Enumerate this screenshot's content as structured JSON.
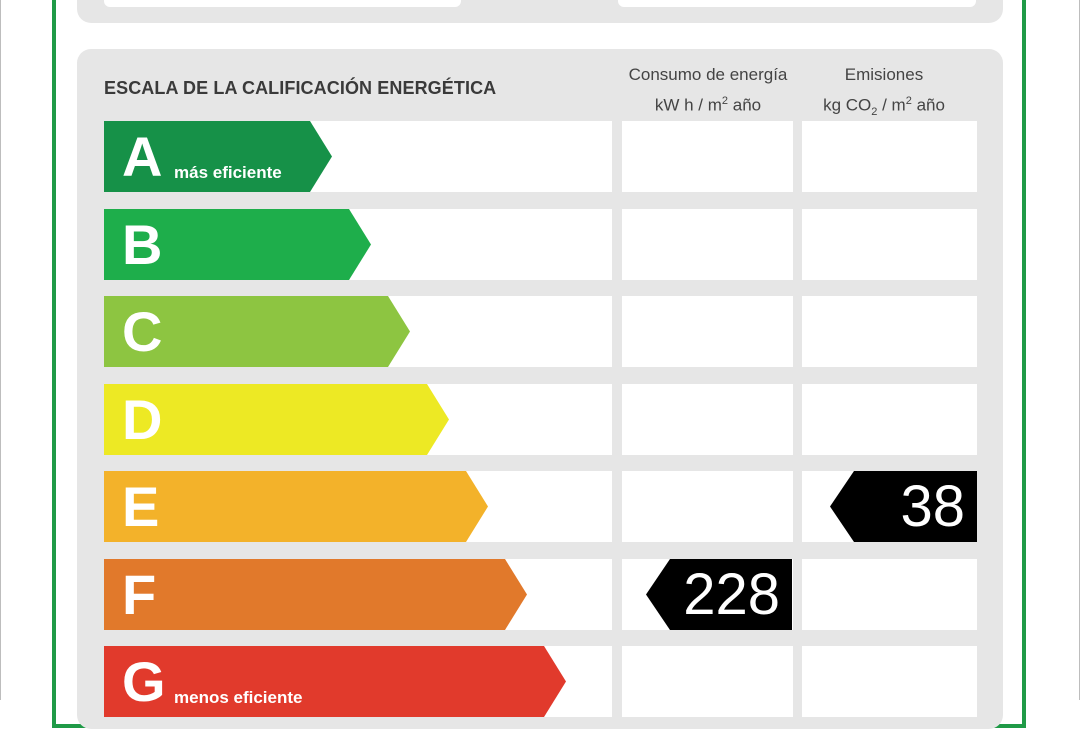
{
  "header": {
    "title": "ESCALA DE LA CALIFICACIÓN ENERGÉTICA",
    "energy_col_line1": "Consumo de energía",
    "energy_col_line2_a": "kW h  / m",
    "energy_col_line2_sup": "2",
    "energy_col_line2_b": " año",
    "emissions_col_line1": "Emisiones",
    "emissions_col_line2_a": "kg CO",
    "emissions_col_line2_sub": "2",
    "emissions_col_line2_b": "  / m",
    "emissions_col_line2_sup": "2",
    "emissions_col_line2_c": " año"
  },
  "ratings": [
    {
      "letter": "A",
      "caption": "más eficiente",
      "color": "#169148"
    },
    {
      "letter": "B",
      "caption": "",
      "color": "#1eae4b"
    },
    {
      "letter": "C",
      "caption": "",
      "color": "#8dc541"
    },
    {
      "letter": "D",
      "caption": "",
      "color": "#ede924"
    },
    {
      "letter": "E",
      "caption": "",
      "color": "#f3b22a"
    },
    {
      "letter": "F",
      "caption": "",
      "color": "#e1792b"
    },
    {
      "letter": "G",
      "caption": "menos eficiente",
      "color": "#e13a2c"
    }
  ],
  "values": {
    "energy_consumption": "228",
    "energy_rating": "F",
    "emissions": "38",
    "emissions_rating": "E"
  }
}
